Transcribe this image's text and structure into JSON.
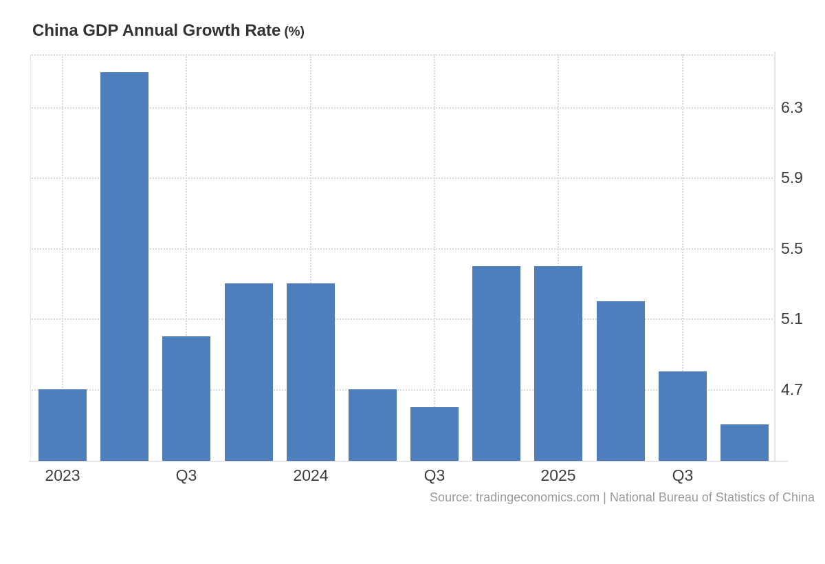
{
  "title": {
    "main": "China GDP Annual Growth Rate",
    "suffix": "(%)"
  },
  "source": "Source: tradingeconomics.com | National Bureau of Statistics of China",
  "colors": {
    "bar": "#4e7ebc",
    "grid": "#d9d9d9",
    "axis": "#e2e2e2",
    "title": "#333333",
    "tick_label": "#3d3d3d",
    "source": "#999999"
  },
  "chart_data": {
    "type": "bar",
    "title": "China GDP Annual Growth Rate (%)",
    "xlabel": "",
    "ylabel": "",
    "x": [
      "2023 Q1",
      "2023 Q2",
      "2023 Q3",
      "2023 Q4",
      "2024 Q1",
      "2024 Q2",
      "2024 Q3",
      "2024 Q4",
      "2025 Q1",
      "2025 Q2",
      "2025 Q3",
      "2025 Q4"
    ],
    "values": [
      4.7,
      6.5,
      5.0,
      5.3,
      5.3,
      4.7,
      4.6,
      5.4,
      5.4,
      5.2,
      4.8,
      4.5
    ],
    "x_tick_labels": [
      "2023",
      "Q3",
      "2024",
      "Q3",
      "2025",
      "Q3"
    ],
    "x_tick_positions": [
      0,
      2,
      4,
      6,
      8,
      10
    ],
    "y_ticks": [
      4.7,
      5.1,
      5.5,
      5.9,
      6.3
    ],
    "ylim": [
      4.29,
      6.6
    ],
    "grid": true,
    "legend": false,
    "yaxis_side": "right",
    "bar_color": "#4e7ebc",
    "source": "Source: tradingeconomics.com | National Bureau of Statistics of China"
  }
}
